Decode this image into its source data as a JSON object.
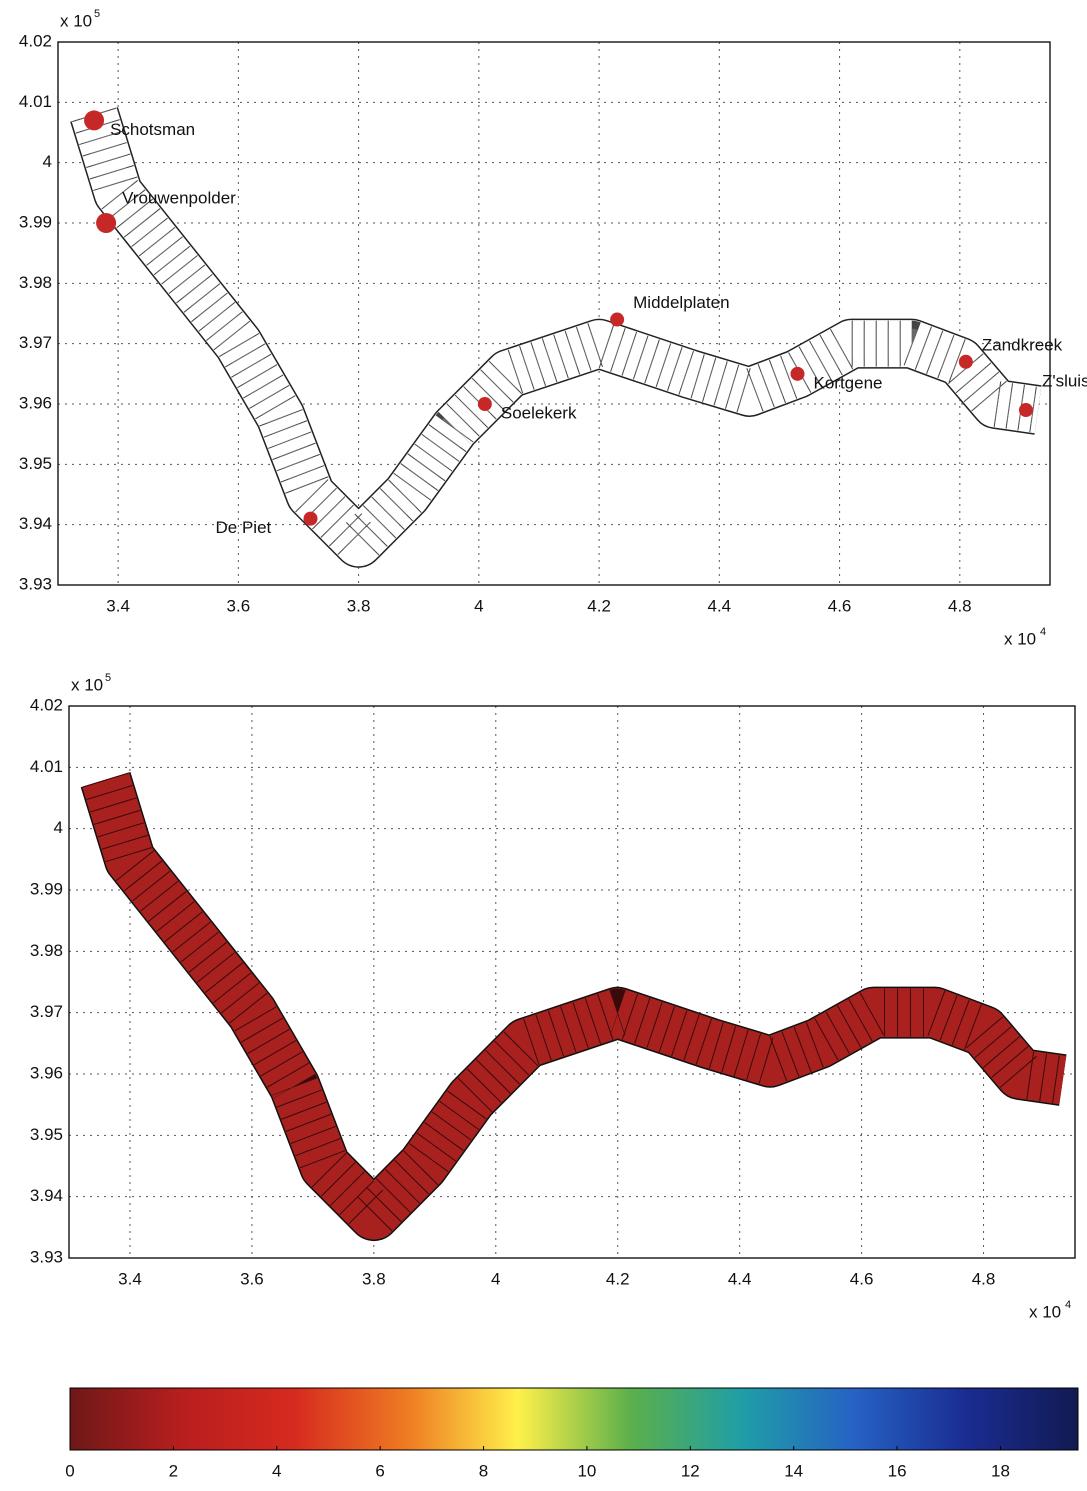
{
  "chart_data": [
    {
      "type": "scatter",
      "x": [
        3.36,
        3.38,
        3.72,
        4.01,
        4.23,
        4.53,
        4.81,
        4.91
      ],
      "y": [
        4.007,
        3.99,
        3.941,
        3.96,
        3.974,
        3.965,
        3.967,
        3.959
      ],
      "point_labels": [
        "Schotsman",
        "Vrouwenpolder",
        "De Piet",
        "Soelekerk",
        "Middelplaten",
        "Kortgene",
        "Zandkreek",
        "Z'sluis"
      ],
      "color": "#c62828",
      "xlim": [
        3.3,
        4.95
      ],
      "ylim": [
        3.93,
        4.02
      ],
      "xticks": [
        3.4,
        3.6,
        3.8,
        4,
        4.2,
        4.4,
        4.6,
        4.8
      ],
      "yticks": [
        3.93,
        3.94,
        3.95,
        3.96,
        3.97,
        3.98,
        3.99,
        4,
        4.01,
        4.02
      ],
      "x_multiplier": "x 10",
      "x_multiplier_exponent": "4",
      "y_multiplier": "x 10",
      "y_multiplier_exponent": "5",
      "grid": true
    },
    {
      "type": "mesh",
      "color": "#a8211e",
      "xlim": [
        3.3,
        4.95
      ],
      "ylim": [
        3.93,
        4.02
      ],
      "xticks": [
        3.4,
        3.6,
        3.8,
        4,
        4.2,
        4.4,
        4.6,
        4.8
      ],
      "yticks": [
        3.93,
        3.94,
        3.95,
        3.96,
        3.97,
        3.98,
        3.99,
        4,
        4.01,
        4.02
      ],
      "x_multiplier": "x 10",
      "x_multiplier_exponent": "4",
      "y_multiplier": "x 10",
      "y_multiplier_exponent": "5",
      "grid": true
    },
    {
      "type": "colorbar",
      "xlim": [
        0,
        19.5
      ],
      "xticks": [
        0,
        2,
        4,
        6,
        8,
        10,
        12,
        14,
        16,
        18
      ],
      "colors": [
        "#6e1818",
        "#b81e1e",
        "#d62a1f",
        "#ee7a22",
        "#fff04a",
        "#5cb04a",
        "#1f9ea6",
        "#2662c4",
        "#1a2c92",
        "#121a52"
      ]
    }
  ]
}
